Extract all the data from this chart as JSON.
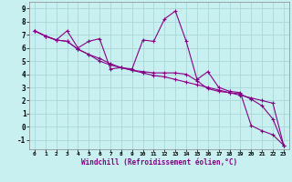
{
  "background_color": "#c8f0f0",
  "line_color": "#880088",
  "grid_color": "#a8d8d8",
  "xlim": [
    -0.5,
    23.5
  ],
  "ylim": [
    -1.7,
    9.5
  ],
  "xticks": [
    0,
    1,
    2,
    3,
    4,
    5,
    6,
    7,
    8,
    9,
    10,
    11,
    12,
    13,
    14,
    15,
    16,
    17,
    18,
    19,
    20,
    21,
    22,
    23
  ],
  "yticks": [
    -1,
    0,
    1,
    2,
    3,
    4,
    5,
    6,
    7,
    8,
    9
  ],
  "xlabel": "Windchill (Refroidissement éolien,°C)",
  "line1_x": [
    0,
    1,
    2,
    3,
    4,
    5,
    6,
    7,
    8,
    9,
    10,
    11,
    12,
    13,
    14,
    15,
    16,
    17,
    18,
    19,
    20,
    21,
    22,
    23
  ],
  "line1_y": [
    7.3,
    6.9,
    6.6,
    7.3,
    6.0,
    6.5,
    6.7,
    4.4,
    4.5,
    4.4,
    6.6,
    6.5,
    8.2,
    8.8,
    6.5,
    3.6,
    4.2,
    3.0,
    2.7,
    2.6,
    0.1,
    -0.3,
    -0.6,
    -1.4
  ],
  "line2_x": [
    0,
    1,
    2,
    3,
    4,
    5,
    6,
    7,
    8,
    9,
    10,
    11,
    12,
    13,
    14,
    15,
    16,
    17,
    18,
    19,
    20,
    21,
    22,
    23
  ],
  "line2_y": [
    7.3,
    6.9,
    6.6,
    6.5,
    5.9,
    5.5,
    5.2,
    4.8,
    4.5,
    4.3,
    4.1,
    3.9,
    3.8,
    3.6,
    3.4,
    3.2,
    3.0,
    2.8,
    2.6,
    2.4,
    2.2,
    2.0,
    1.8,
    -1.4
  ],
  "line3_x": [
    0,
    1,
    2,
    3,
    4,
    5,
    6,
    7,
    8,
    9,
    10,
    11,
    12,
    13,
    14,
    15,
    16,
    17,
    18,
    19,
    20,
    21,
    22,
    23
  ],
  "line3_y": [
    7.3,
    6.9,
    6.6,
    6.5,
    5.9,
    5.5,
    5.0,
    4.7,
    4.5,
    4.3,
    4.2,
    4.1,
    4.1,
    4.1,
    4.0,
    3.5,
    2.9,
    2.7,
    2.6,
    2.5,
    2.1,
    1.6,
    0.6,
    -1.4
  ]
}
